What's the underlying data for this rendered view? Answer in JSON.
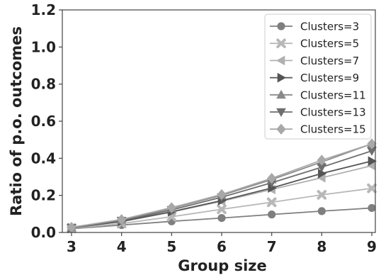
{
  "chart_data": {
    "type": "line",
    "xlabel": "Group size",
    "ylabel": "Ratio of p.o. outcomes",
    "x": [
      3,
      4,
      5,
      6,
      7,
      8,
      9
    ],
    "xlim": [
      3,
      9
    ],
    "ylim": [
      0,
      1.2
    ],
    "xticks": [
      "3",
      "4",
      "5",
      "6",
      "7",
      "8",
      "9"
    ],
    "yticks": [
      "0.0",
      "0.2",
      "0.4",
      "0.6",
      "0.8",
      "1.0",
      "1.2"
    ],
    "grid": false,
    "legend_position": "top-right",
    "series": [
      {
        "name": "Clusters=3",
        "marker": "circle",
        "color": "#7f7f7f",
        "values": [
          0.02,
          0.04,
          0.06,
          0.078,
          0.097,
          0.115,
          0.132
        ]
      },
      {
        "name": "Clusters=5",
        "marker": "x",
        "color": "#b8b8b8",
        "values": [
          0.022,
          0.048,
          0.085,
          0.125,
          0.163,
          0.203,
          0.238
        ]
      },
      {
        "name": "Clusters=7",
        "marker": "triangle-left",
        "color": "#b0b0b0",
        "values": [
          0.025,
          0.058,
          0.11,
          0.168,
          0.232,
          0.295,
          0.36
        ]
      },
      {
        "name": "Clusters=9",
        "marker": "triangle-right",
        "color": "#555555",
        "values": [
          0.025,
          0.06,
          0.112,
          0.172,
          0.24,
          0.318,
          0.385
        ]
      },
      {
        "name": "Clusters=11",
        "marker": "triangle-up",
        "color": "#8a8a8a",
        "values": [
          0.027,
          0.068,
          0.13,
          0.2,
          0.285,
          0.38,
          0.478
        ]
      },
      {
        "name": "Clusters=13",
        "marker": "triangle-down",
        "color": "#6e6e6e",
        "values": [
          0.026,
          0.064,
          0.122,
          0.19,
          0.268,
          0.352,
          0.44
        ]
      },
      {
        "name": "Clusters=15",
        "marker": "diamond",
        "color": "#a8a8a8",
        "values": [
          0.028,
          0.07,
          0.134,
          0.205,
          0.292,
          0.39,
          0.478
        ]
      }
    ]
  }
}
